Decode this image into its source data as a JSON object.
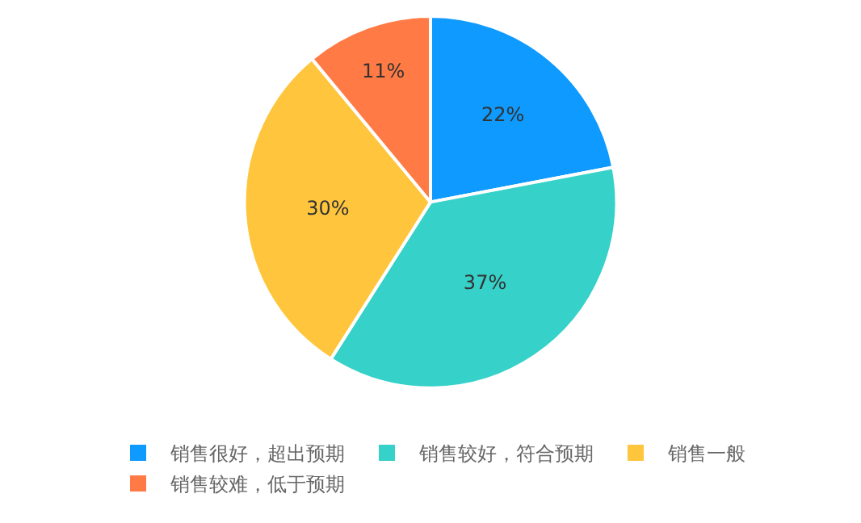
{
  "chart_data": {
    "type": "pie",
    "categories": [
      "销售很好，超出预期",
      "销售较好，符合预期",
      "销售一般",
      "销售较难，低于预期"
    ],
    "values": [
      22,
      37,
      30,
      11
    ],
    "colors": [
      "#0e9afe",
      "#36d1c8",
      "#ffc53d",
      "#ff7a45"
    ],
    "value_labels": [
      "22%",
      "37%",
      "30%",
      "11%"
    ],
    "legend": "bottom"
  }
}
